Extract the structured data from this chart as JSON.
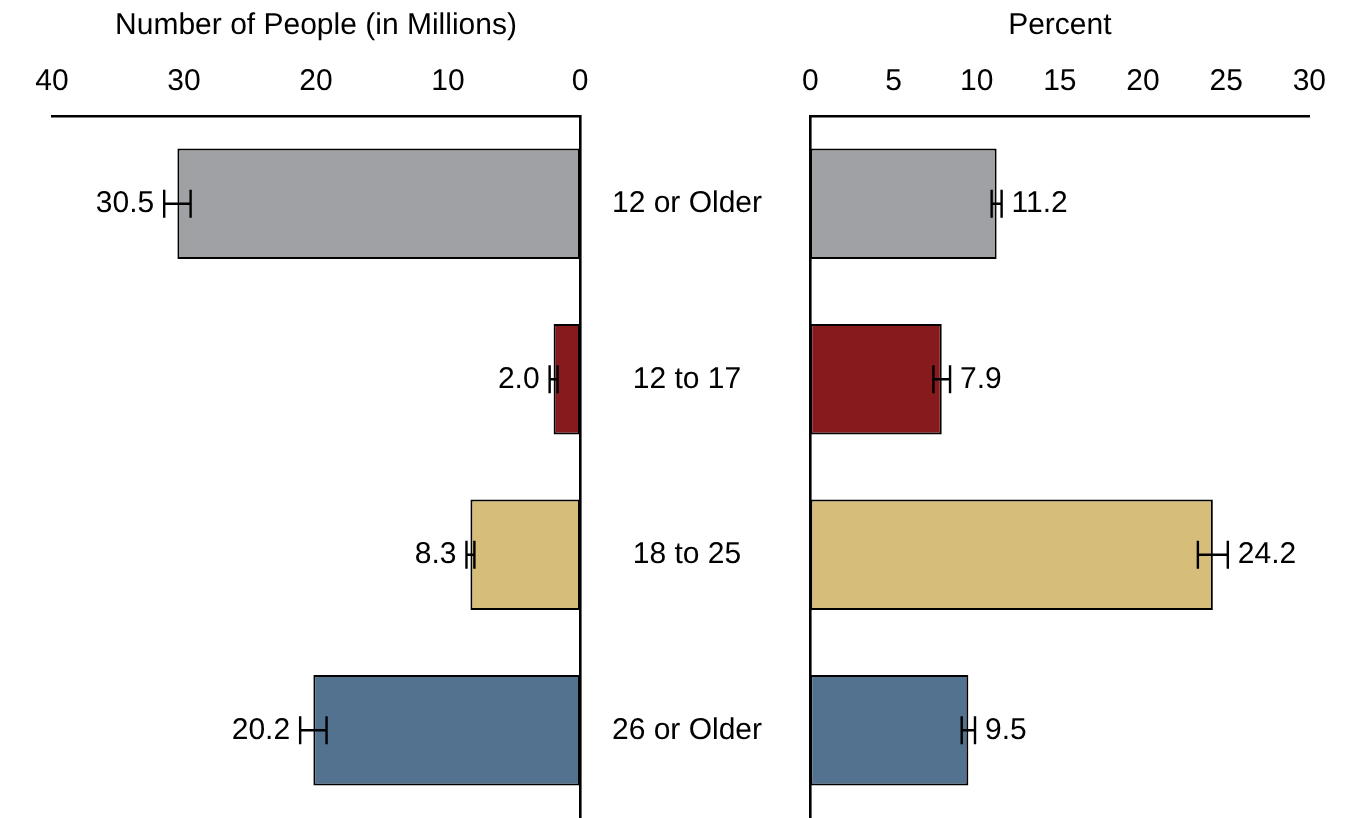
{
  "chart_data": [
    {
      "type": "bar",
      "orientation": "horizontal",
      "xlabel": "Number of People (in Millions)",
      "categories": [
        "12 or Older",
        "12 to 17",
        "18 to 25",
        "26 or Older"
      ],
      "values": [
        30.5,
        2.0,
        8.3,
        20.2
      ],
      "errors": [
        1.0,
        0.3,
        0.3,
        1.0
      ],
      "value_labels": [
        "30.5",
        "2.0",
        "8.3",
        "20.2"
      ],
      "colors": [
        "#a0a1a5",
        "#861a1c",
        "#d6be7a",
        "#52728f"
      ],
      "xlim": [
        40,
        0
      ],
      "xticks": [
        40,
        30,
        20,
        10,
        0
      ]
    },
    {
      "type": "bar",
      "orientation": "horizontal",
      "xlabel": "Percent",
      "categories": [
        "12 or Older",
        "12 to 17",
        "18 to 25",
        "26 or Older"
      ],
      "values": [
        11.2,
        7.9,
        24.2,
        9.5
      ],
      "errors": [
        0.3,
        0.5,
        0.9,
        0.4
      ],
      "value_labels": [
        "11.2",
        "7.9",
        "24.2",
        "9.5"
      ],
      "colors": [
        "#a0a1a5",
        "#861a1c",
        "#d6be7a",
        "#52728f"
      ],
      "xlim": [
        0,
        30
      ],
      "xticks": [
        0,
        5,
        10,
        15,
        20,
        25,
        30
      ],
      "tick_labels": "x"
    }
  ]
}
